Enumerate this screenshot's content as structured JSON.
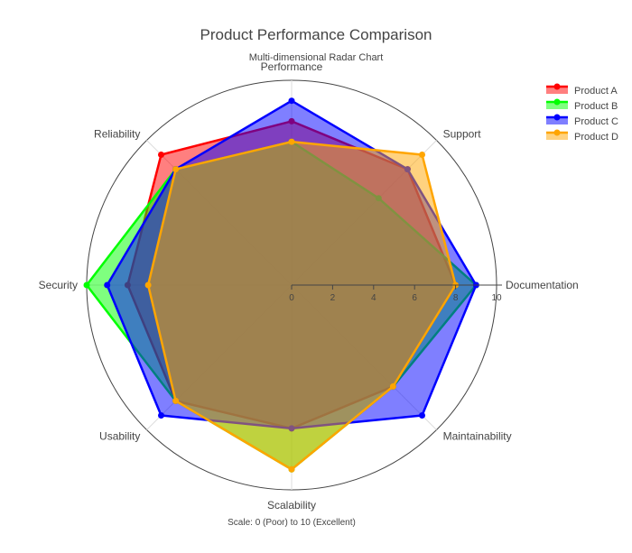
{
  "chart_data": {
    "type": "radar",
    "title": "Product Performance Comparison",
    "subtitle": "Multi-dimensional Radar Chart",
    "footer": "Scale: 0 (Poor) to 10 (Excellent)",
    "categories": [
      "Performance",
      "Support",
      "Documentation",
      "Maintainability",
      "Scalability",
      "Usability",
      "Security",
      "Reliability"
    ],
    "radial_range": [
      0,
      10
    ],
    "radial_ticks": [
      "0",
      "2",
      "4",
      "6",
      "8",
      "10"
    ],
    "legend_position": "top-right",
    "series": [
      {
        "name": "Product A",
        "color": "#ff0000",
        "values": [
          8,
          8,
          8,
          7,
          7,
          8,
          8,
          9
        ]
      },
      {
        "name": "Product B",
        "color": "#00ff00",
        "values": [
          7,
          6,
          9,
          7,
          9,
          8,
          10,
          8
        ]
      },
      {
        "name": "Product C",
        "color": "#0000ff",
        "values": [
          9,
          8,
          9,
          9,
          7,
          9,
          9,
          8
        ]
      },
      {
        "name": "Product D",
        "color": "#ffa500",
        "values": [
          7,
          9,
          8,
          7,
          9,
          8,
          7,
          8
        ]
      }
    ]
  }
}
